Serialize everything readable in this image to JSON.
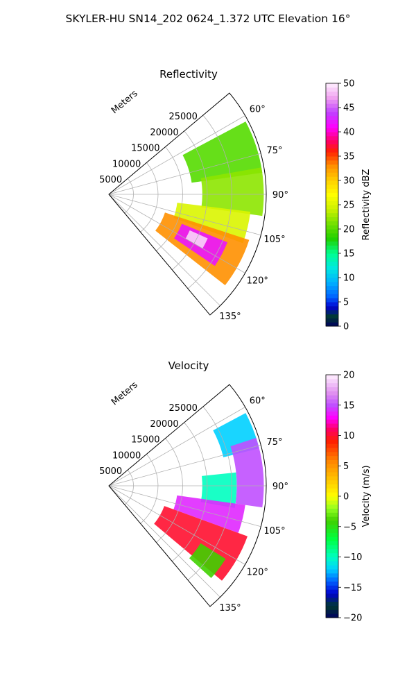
{
  "figure_title": "SKYLER-HU  SN14_202  0624_1.372 UTC Elevation 16°",
  "chart_data": [
    {
      "type": "heatmap",
      "title": "Reflectivity",
      "projection": "polar-sector (PPI)",
      "radial_axis_label": "Meters",
      "radial_ticks": [
        5000,
        10000,
        15000,
        20000,
        25000
      ],
      "radial_tick_labels": [
        "5000",
        "10000",
        "15000",
        "20000",
        "25000"
      ],
      "rmax": 32000,
      "azimuth_range_deg": [
        50,
        140
      ],
      "azimuth_ticks": [
        60,
        75,
        90,
        105,
        120,
        135
      ],
      "azimuth_tick_labels": [
        "60°",
        "75°",
        "90°",
        "105°",
        "120°",
        "135°"
      ],
      "grid": true,
      "colorbar": {
        "label": "Reflectivity dBZ",
        "range": [
          0,
          50
        ],
        "ticks": [
          0,
          5,
          10,
          15,
          20,
          25,
          30,
          35,
          40,
          45,
          50
        ],
        "tick_labels": [
          "0",
          "5",
          "10",
          "15",
          "20",
          "25",
          "30",
          "35",
          "40",
          "45",
          "50"
        ]
      },
      "field_regions": [
        {
          "az": [
            62,
            82
          ],
          "r": [
            17000,
            31500
          ],
          "value": 20
        },
        {
          "az": [
            80,
            98
          ],
          "r": [
            19000,
            31500
          ],
          "value": 22
        },
        {
          "az": [
            97,
            110
          ],
          "r": [
            14000,
            29000
          ],
          "value": 25
        },
        {
          "az": [
            108,
            128
          ],
          "r": [
            12000,
            30000
          ],
          "value": 33
        },
        {
          "az": [
            112,
            124
          ],
          "r": [
            16000,
            26000
          ],
          "value": 42
        },
        {
          "az": [
            114,
            120
          ],
          "r": [
            18000,
            22000
          ],
          "value": 49
        }
      ]
    },
    {
      "type": "heatmap",
      "title": "Velocity",
      "projection": "polar-sector (PPI)",
      "radial_axis_label": "Meters",
      "radial_ticks": [
        5000,
        10000,
        15000,
        20000,
        25000
      ],
      "radial_tick_labels": [
        "5000",
        "10000",
        "15000",
        "20000",
        "25000"
      ],
      "rmax": 32000,
      "azimuth_range_deg": [
        50,
        140
      ],
      "azimuth_ticks": [
        60,
        75,
        90,
        105,
        120,
        135
      ],
      "azimuth_tick_labels": [
        "60°",
        "75°",
        "90°",
        "105°",
        "120°",
        "135°"
      ],
      "grid": true,
      "colorbar": {
        "label": "Velocity (m/s)",
        "range": [
          -20,
          20
        ],
        "ticks": [
          -20,
          -15,
          -10,
          -5,
          0,
          5,
          10,
          15,
          20
        ],
        "tick_labels": [
          "−20",
          "−15",
          "−10",
          "−5",
          "0",
          "5",
          "10",
          "15",
          "20"
        ]
      },
      "field_regions": [
        {
          "az": [
            62,
            76
          ],
          "r": [
            24000,
            31500
          ],
          "value": -12
        },
        {
          "az": [
            72,
            98
          ],
          "r": [
            26000,
            31500
          ],
          "value": 15
        },
        {
          "az": [
            84,
            100
          ],
          "r": [
            19000,
            26000
          ],
          "value": -10
        },
        {
          "az": [
            98,
            110
          ],
          "r": [
            14000,
            28000
          ],
          "value": 14
        },
        {
          "az": [
            110,
            130
          ],
          "r": [
            12000,
            30000
          ],
          "value": 10
        },
        {
          "az": [
            122,
            132
          ],
          "r": [
            22000,
            28000
          ],
          "value": -4
        }
      ]
    }
  ]
}
